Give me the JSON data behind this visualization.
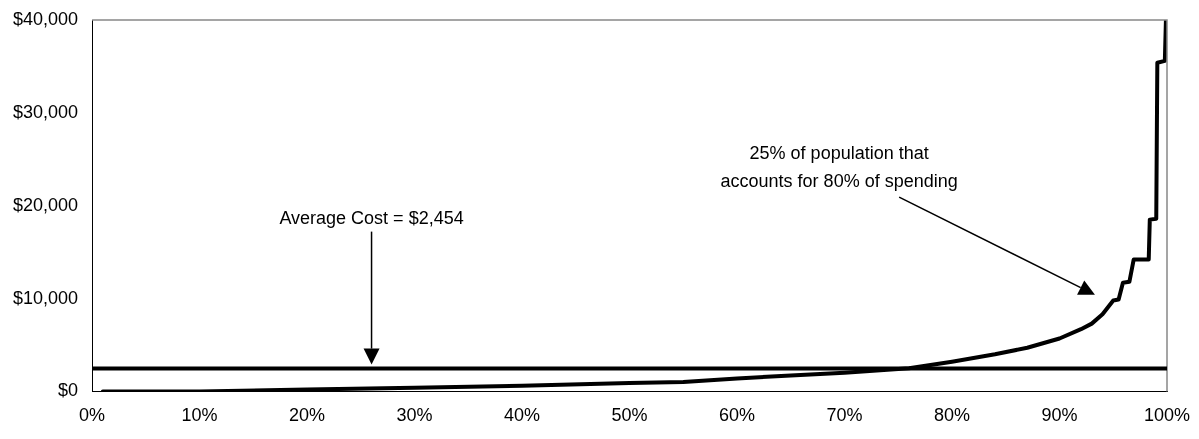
{
  "chart_data": {
    "type": "line",
    "x": [
      1,
      10,
      20,
      30,
      40,
      50,
      55,
      60,
      65,
      70,
      76,
      80,
      84,
      87,
      90,
      92,
      93,
      94,
      95,
      95.5,
      95.9,
      96.5,
      96.9,
      98.3,
      98.4,
      99,
      99.1,
      99.8,
      99.9
    ],
    "series": [
      {
        "color": "#000000",
        "values": [
          0,
          0,
          200,
          400,
          600,
          900,
          1000,
          1400,
          1700,
          2000,
          2500,
          3200,
          4000,
          4700,
          5700,
          6700,
          7300,
          8300,
          9800,
          9900,
          11700,
          11800,
          14200,
          14200,
          18500,
          18600,
          35400,
          35600,
          40000
        ]
      }
    ],
    "xlim": [
      0,
      100
    ],
    "xticks": [
      {
        "value": 0,
        "label": "0%"
      },
      {
        "value": 10,
        "label": "10%"
      },
      {
        "value": 20,
        "label": "20%"
      },
      {
        "value": 30,
        "label": "30%"
      },
      {
        "value": 40,
        "label": "40%"
      },
      {
        "value": 50,
        "label": "50%"
      },
      {
        "value": 60,
        "label": "60%"
      },
      {
        "value": 70,
        "label": "70%"
      },
      {
        "value": 80,
        "label": "80%"
      },
      {
        "value": 90,
        "label": "90%"
      },
      {
        "value": 100,
        "label": "100%"
      }
    ],
    "ylim": [
      0,
      40000
    ],
    "yticks": [
      {
        "value": 0,
        "label": "$0"
      },
      {
        "value": 10000,
        "label": "$10,000"
      },
      {
        "value": 20000,
        "label": "$20,000"
      },
      {
        "value": 30000,
        "label": "$30,000"
      },
      {
        "value": 40000,
        "label": "$40,000"
      }
    ],
    "ref_lines": [
      {
        "axis": "y",
        "value": 2454,
        "label": "Average Cost = $2,454",
        "color": "#000000"
      }
    ],
    "annotations": [
      "25% of population that\naccounts for 80% of spending"
    ],
    "grid": false,
    "legend": false,
    "marker": "none",
    "line_style": "solid"
  }
}
